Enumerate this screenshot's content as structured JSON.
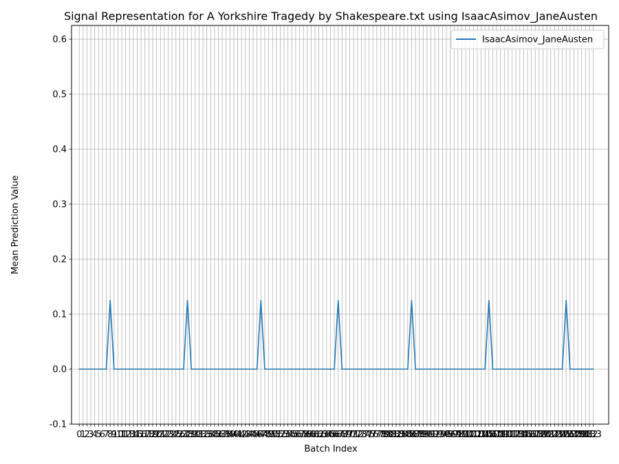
{
  "chart_data": {
    "type": "line",
    "title": "Signal Representation for A Yorkshire Tragedy by Shakespeare.txt using IsaacAsimov_JaneAusten",
    "xlabel": "Batch Index",
    "ylabel": "Mean Prediction Value",
    "xlim": [
      -2,
      137
    ],
    "ylim": [
      -0.1,
      0.625
    ],
    "yticks": [
      -0.1,
      0.0,
      0.1,
      0.2,
      0.3,
      0.4,
      0.5,
      0.6
    ],
    "x_tick_start": 0,
    "x_tick_end": 133,
    "x_tick_step": 1,
    "grid": true,
    "legend_position": "top-right",
    "series": [
      {
        "name": "IsaacAsimov_JaneAusten",
        "color": "#1f77b4",
        "x": [
          0,
          7,
          8,
          9,
          27,
          28,
          29,
          46,
          47,
          48,
          66,
          67,
          68,
          85,
          86,
          87,
          105,
          106,
          107,
          125,
          126,
          127,
          133
        ],
        "values": [
          0,
          0,
          0.125,
          0,
          0,
          0.125,
          0,
          0,
          0.125,
          0,
          0,
          0.125,
          0,
          0,
          0.125,
          0,
          0,
          0.125,
          0,
          0,
          0.125,
          0,
          0
        ]
      }
    ]
  }
}
